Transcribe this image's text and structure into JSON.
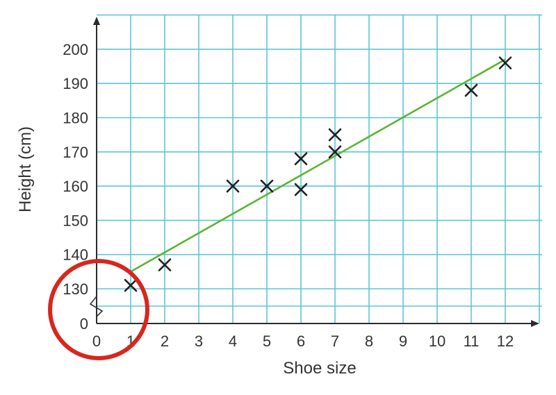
{
  "chart_data": {
    "type": "scatter",
    "title": "",
    "xlabel": "Shoe size",
    "ylabel": "Height (cm)",
    "x_ticks": [
      "0",
      "1",
      "2",
      "3",
      "4",
      "5",
      "6",
      "7",
      "8",
      "9",
      "10",
      "11",
      "12"
    ],
    "y_ticks": [
      "0",
      "130",
      "140",
      "150",
      "160",
      "170",
      "180",
      "190",
      "200"
    ],
    "xlim": [
      0,
      12.5
    ],
    "ylim": [
      120,
      205
    ],
    "y_axis_break": true,
    "grid": true,
    "series": [
      {
        "points": [
          {
            "x": 1,
            "y": 131
          },
          {
            "x": 2,
            "y": 137
          },
          {
            "x": 4,
            "y": 160
          },
          {
            "x": 5,
            "y": 160
          },
          {
            "x": 6,
            "y": 168
          },
          {
            "x": 6,
            "y": 159
          },
          {
            "x": 7,
            "y": 175
          },
          {
            "x": 7,
            "y": 170
          },
          {
            "x": 11,
            "y": 188
          },
          {
            "x": 12,
            "y": 196
          }
        ]
      }
    ],
    "trend_line": {
      "from": {
        "x": 1,
        "y": 135
      },
      "to": {
        "x": 12,
        "y": 197
      }
    },
    "highlight": "circle around the y-axis break near the origin",
    "colors": {
      "grid": "#5cc6d6",
      "trend_line": "#59b531",
      "markers": "#222222",
      "highlight_circle": "#d7271d"
    }
  }
}
